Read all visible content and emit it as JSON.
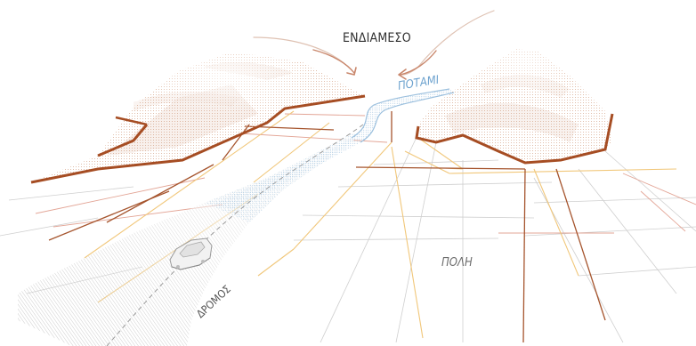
{
  "labels": {
    "intermediate": "ΕΝΔΙΑΜΕΣΟ",
    "river": "ΠΟΤΑΜΙ",
    "city": "ΠΟΛΗ",
    "road": "ΔΡΟΜΟΣ"
  },
  "colors": {
    "terrain_edge": "#b5562a",
    "terrain_fill": "#d8a788",
    "river": "#8fb7d8",
    "street_yellow": "#f0c97a",
    "street_brown": "#a9562e",
    "street_red": "#d98a7a",
    "street_grey": "#c9c9c9",
    "road_fill": "#c8c8c8",
    "arrow": "#c9876c",
    "label_dark": "#2f2f2f",
    "label_blue": "#6ea3cf",
    "label_grey": "#6d6d6d"
  },
  "icons": {
    "vehicle": "car-icon",
    "arrow_left": "curved-arrow-icon",
    "arrow_right": "curved-arrow-icon"
  }
}
